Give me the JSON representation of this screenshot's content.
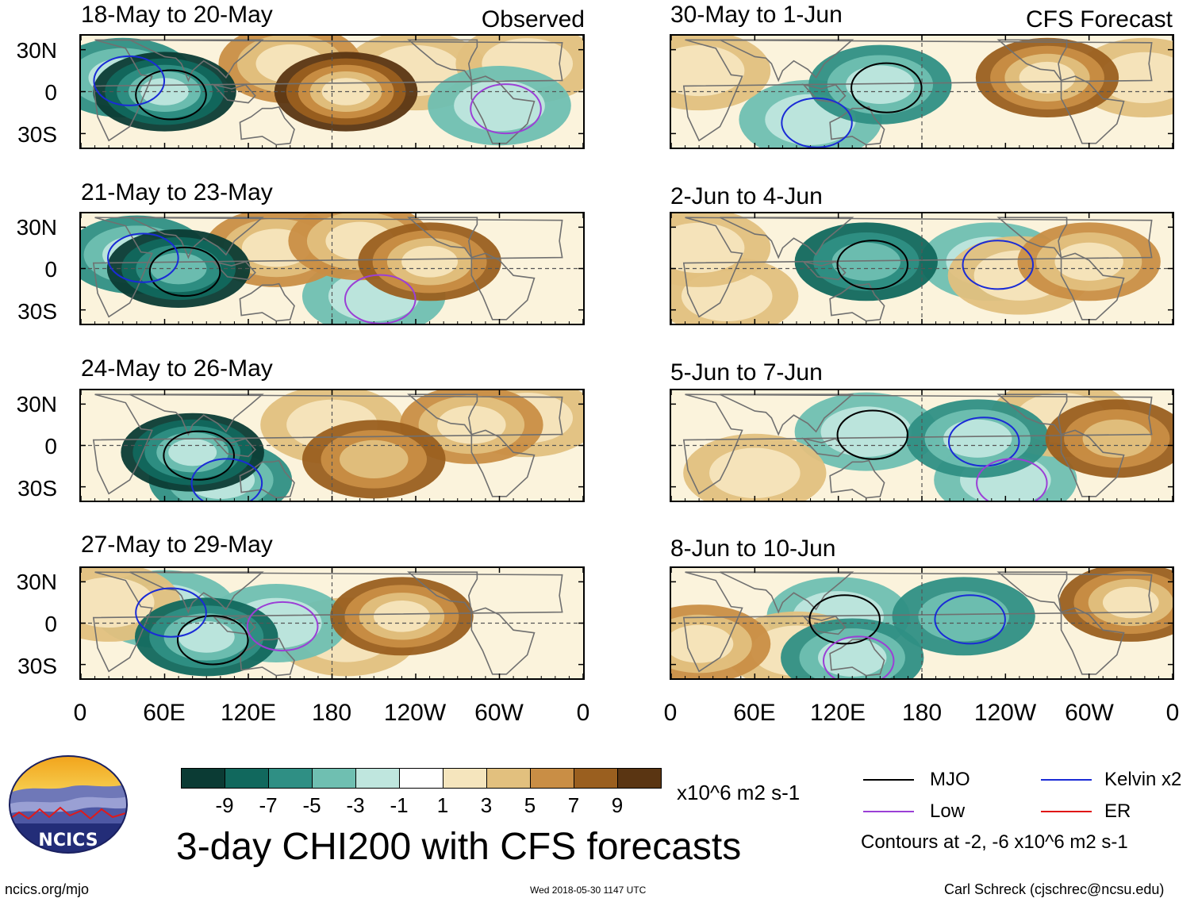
{
  "figure_title": "3-day CHI200 with CFS forecasts",
  "observed_label": "Observed",
  "forecast_label": "CFS Forecast",
  "left_panels": [
    {
      "title": "18-May to 20-May"
    },
    {
      "title": "21-May to 23-May"
    },
    {
      "title": "24-May to 26-May"
    },
    {
      "title": "27-May to 29-May"
    }
  ],
  "right_panels": [
    {
      "title": "30-May to 1-Jun"
    },
    {
      "title": "2-Jun to 4-Jun"
    },
    {
      "title": "5-Jun to 7-Jun"
    },
    {
      "title": "8-Jun to 10-Jun"
    }
  ],
  "lat_labels": [
    "30N",
    "0",
    "30S"
  ],
  "lon_labels": [
    "0",
    "60E",
    "120E",
    "180",
    "120W",
    "60W",
    "0"
  ],
  "colorbar": {
    "unit": "x10^6 m2 s-1",
    "tick_labels": [
      "-9",
      "-7",
      "-5",
      "-3",
      "-1",
      "1",
      "3",
      "5",
      "7",
      "9"
    ],
    "colors": [
      "#0b3b34",
      "#11685d",
      "#2f8f84",
      "#6fbfb1",
      "#bfe6de",
      "#ffffff",
      "#f5e5bd",
      "#e2c07e",
      "#c98e45",
      "#9a5f1f",
      "#5a3512"
    ]
  },
  "legend": {
    "items": [
      {
        "label": "MJO",
        "color": "#000000"
      },
      {
        "label": "Kelvin x2",
        "color": "#1a2bd6"
      },
      {
        "label": "Low",
        "color": "#9b3fd6"
      },
      {
        "label": "ER",
        "color": "#e01515"
      }
    ],
    "contour_note": "Contours at -2, -6 x10^6 m2 s-1"
  },
  "logo_text": "NCICS",
  "footer": {
    "url": "ncics.org/mjo",
    "timestamp": "Wed 2018-05-30 1147 UTC",
    "credit": "Carl Schreck (cjschrec@ncsu.edu)"
  },
  "map_data": {
    "note": "Anomaly blobs (lon degrees east 0-360, lat degrees, value in x10^6 m2 s-1)",
    "panels": [
      [
        {
          "lon": 60,
          "lat": 0,
          "v": -9
        },
        {
          "lon": 30,
          "lat": 10,
          "v": -5
        },
        {
          "lon": 190,
          "lat": 0,
          "v": 9
        },
        {
          "lon": 150,
          "lat": 20,
          "v": 5
        },
        {
          "lon": 240,
          "lat": 15,
          "v": 3
        },
        {
          "lon": 320,
          "lat": 20,
          "v": 3
        },
        {
          "lon": 300,
          "lat": -10,
          "v": -3
        }
      ],
      [
        {
          "lon": 70,
          "lat": 0,
          "v": -8
        },
        {
          "lon": 40,
          "lat": 10,
          "v": -5
        },
        {
          "lon": 140,
          "lat": 15,
          "v": 5
        },
        {
          "lon": 200,
          "lat": 20,
          "v": 5
        },
        {
          "lon": 250,
          "lat": 5,
          "v": 7
        },
        {
          "lon": 210,
          "lat": -20,
          "v": -3
        }
      ],
      [
        {
          "lon": 80,
          "lat": -5,
          "v": -9
        },
        {
          "lon": 100,
          "lat": -25,
          "v": -5
        },
        {
          "lon": 210,
          "lat": -10,
          "v": 6
        },
        {
          "lon": 180,
          "lat": 15,
          "v": 3
        },
        {
          "lon": 280,
          "lat": 15,
          "v": 5
        },
        {
          "lon": 320,
          "lat": 20,
          "v": 3
        }
      ],
      [
        {
          "lon": 90,
          "lat": -10,
          "v": -7
        },
        {
          "lon": 60,
          "lat": 10,
          "v": -3
        },
        {
          "lon": 230,
          "lat": 5,
          "v": 7
        },
        {
          "lon": 190,
          "lat": -10,
          "v": 3
        },
        {
          "lon": 20,
          "lat": 15,
          "v": 3
        },
        {
          "lon": 140,
          "lat": 0,
          "v": -3
        }
      ],
      [
        {
          "lon": 150,
          "lat": 5,
          "v": -5
        },
        {
          "lon": 100,
          "lat": -20,
          "v": -3
        },
        {
          "lon": 270,
          "lat": 10,
          "v": 7
        },
        {
          "lon": 20,
          "lat": 15,
          "v": 3
        },
        {
          "lon": 340,
          "lat": 10,
          "v": 3
        }
      ],
      [
        {
          "lon": 140,
          "lat": 5,
          "v": -6
        },
        {
          "lon": 230,
          "lat": 5,
          "v": -3
        },
        {
          "lon": 300,
          "lat": 5,
          "v": 5
        },
        {
          "lon": 250,
          "lat": -5,
          "v": 3
        },
        {
          "lon": 40,
          "lat": -20,
          "v": 3
        },
        {
          "lon": 20,
          "lat": 15,
          "v": 3
        }
      ],
      [
        {
          "lon": 140,
          "lat": 10,
          "v": -3
        },
        {
          "lon": 220,
          "lat": 5,
          "v": -5
        },
        {
          "lon": 320,
          "lat": 5,
          "v": 6
        },
        {
          "lon": 60,
          "lat": -20,
          "v": 3
        },
        {
          "lon": 240,
          "lat": -25,
          "v": -3
        },
        {
          "lon": 280,
          "lat": 20,
          "v": 3
        }
      ],
      [
        {
          "lon": 120,
          "lat": 5,
          "v": -3
        },
        {
          "lon": 210,
          "lat": 5,
          "v": -4
        },
        {
          "lon": 330,
          "lat": 15,
          "v": 7
        },
        {
          "lon": 20,
          "lat": -15,
          "v": 5
        },
        {
          "lon": 130,
          "lat": -25,
          "v": -5
        },
        {
          "lon": 90,
          "lat": -20,
          "v": 3
        }
      ]
    ]
  }
}
